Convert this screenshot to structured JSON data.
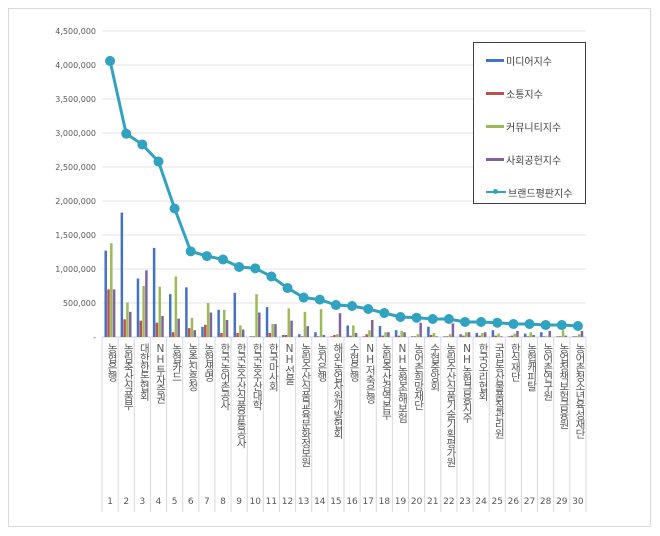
{
  "chart_data": {
    "type": "bar+line",
    "categories": [
      "농협은행",
      "농림축산식품부",
      "대한한돈협회",
      "NH투자증권",
      "농협카드",
      "농촌진흥청",
      "농협생명",
      "한국농어촌공사",
      "한국농수산식품유통공사",
      "한국농수산대학",
      "한국마사회",
      "NH선물",
      "농림수산식품교육문화정보원",
      "농지은행",
      "해외농업자원개발협회",
      "수협은행",
      "NH저축은행",
      "농림축산검역본부",
      "NH농협손해보험",
      "농어촌희망재단",
      "수협중앙회",
      "농림수산식품기술기획평가원",
      "NH농협금융지주",
      "한국오리협회",
      "국립농산물품질관리원",
      "한식재단",
      "농협캐피탈",
      "농어촌연구원",
      "농업정책보험금융원",
      "농어촌청소년육성재단"
    ],
    "ranks": [
      "1",
      "2",
      "3",
      "4",
      "5",
      "6",
      "7",
      "8",
      "9",
      "10",
      "11",
      "12",
      "13",
      "14",
      "15",
      "16",
      "17",
      "18",
      "19",
      "20",
      "21",
      "22",
      "23",
      "24",
      "25",
      "26",
      "27",
      "28",
      "29",
      "30"
    ],
    "series": [
      {
        "name": "미디어지수",
        "kind": "bar",
        "color": "#4472c4",
        "values": [
          1270000,
          1830000,
          860000,
          1310000,
          630000,
          730000,
          150000,
          400000,
          650000,
          10000,
          440000,
          30000,
          40000,
          70000,
          10000,
          170000,
          10000,
          160000,
          100000,
          10000,
          150000,
          10000,
          40000,
          60000,
          100000,
          10000,
          50000,
          70000,
          10000,
          10000
        ]
      },
      {
        "name": "소통지수",
        "kind": "bar",
        "color": "#c0504d",
        "values": [
          700000,
          260000,
          240000,
          210000,
          70000,
          130000,
          180000,
          60000,
          60000,
          10000,
          60000,
          30000,
          10000,
          10000,
          30000,
          20000,
          40000,
          20000,
          20000,
          10000,
          30000,
          10000,
          20000,
          20000,
          20000,
          20000,
          10000,
          10000,
          10000,
          10000
        ]
      },
      {
        "name": "커뮤니티지수",
        "kind": "bar",
        "color": "#9bbb59",
        "values": [
          1380000,
          510000,
          750000,
          740000,
          890000,
          280000,
          500000,
          400000,
          170000,
          630000,
          190000,
          420000,
          370000,
          410000,
          40000,
          170000,
          100000,
          70000,
          90000,
          40000,
          60000,
          40000,
          70000,
          60000,
          50000,
          50000,
          70000,
          10000,
          100000,
          40000
        ]
      },
      {
        "name": "사회공헌지수",
        "kind": "bar",
        "color": "#8064a2",
        "values": [
          700000,
          370000,
          980000,
          310000,
          270000,
          100000,
          360000,
          250000,
          110000,
          360000,
          190000,
          240000,
          160000,
          30000,
          350000,
          60000,
          250000,
          70000,
          70000,
          210000,
          10000,
          200000,
          70000,
          70000,
          10000,
          90000,
          30000,
          90000,
          20000,
          90000
        ]
      },
      {
        "name": "브랜드평판지수",
        "kind": "line",
        "color": "#31a2bf",
        "values": [
          4060000,
          2990000,
          2830000,
          2580000,
          1890000,
          1260000,
          1190000,
          1140000,
          1030000,
          1010000,
          890000,
          720000,
          580000,
          550000,
          470000,
          456000,
          412000,
          353000,
          294000,
          284000,
          265000,
          265000,
          221000,
          221000,
          210000,
          191000,
          191000,
          176000,
          176000,
          162000
        ]
      }
    ],
    "yticks": [
      "-",
      "500,000",
      "1,000,000",
      "1,500,000",
      "2,000,000",
      "2,500,000",
      "3,000,000",
      "3,500,000",
      "4,000,000",
      "4,500,000"
    ],
    "ylim": [
      0,
      4500000
    ],
    "grid": true,
    "legend": "top-right"
  }
}
